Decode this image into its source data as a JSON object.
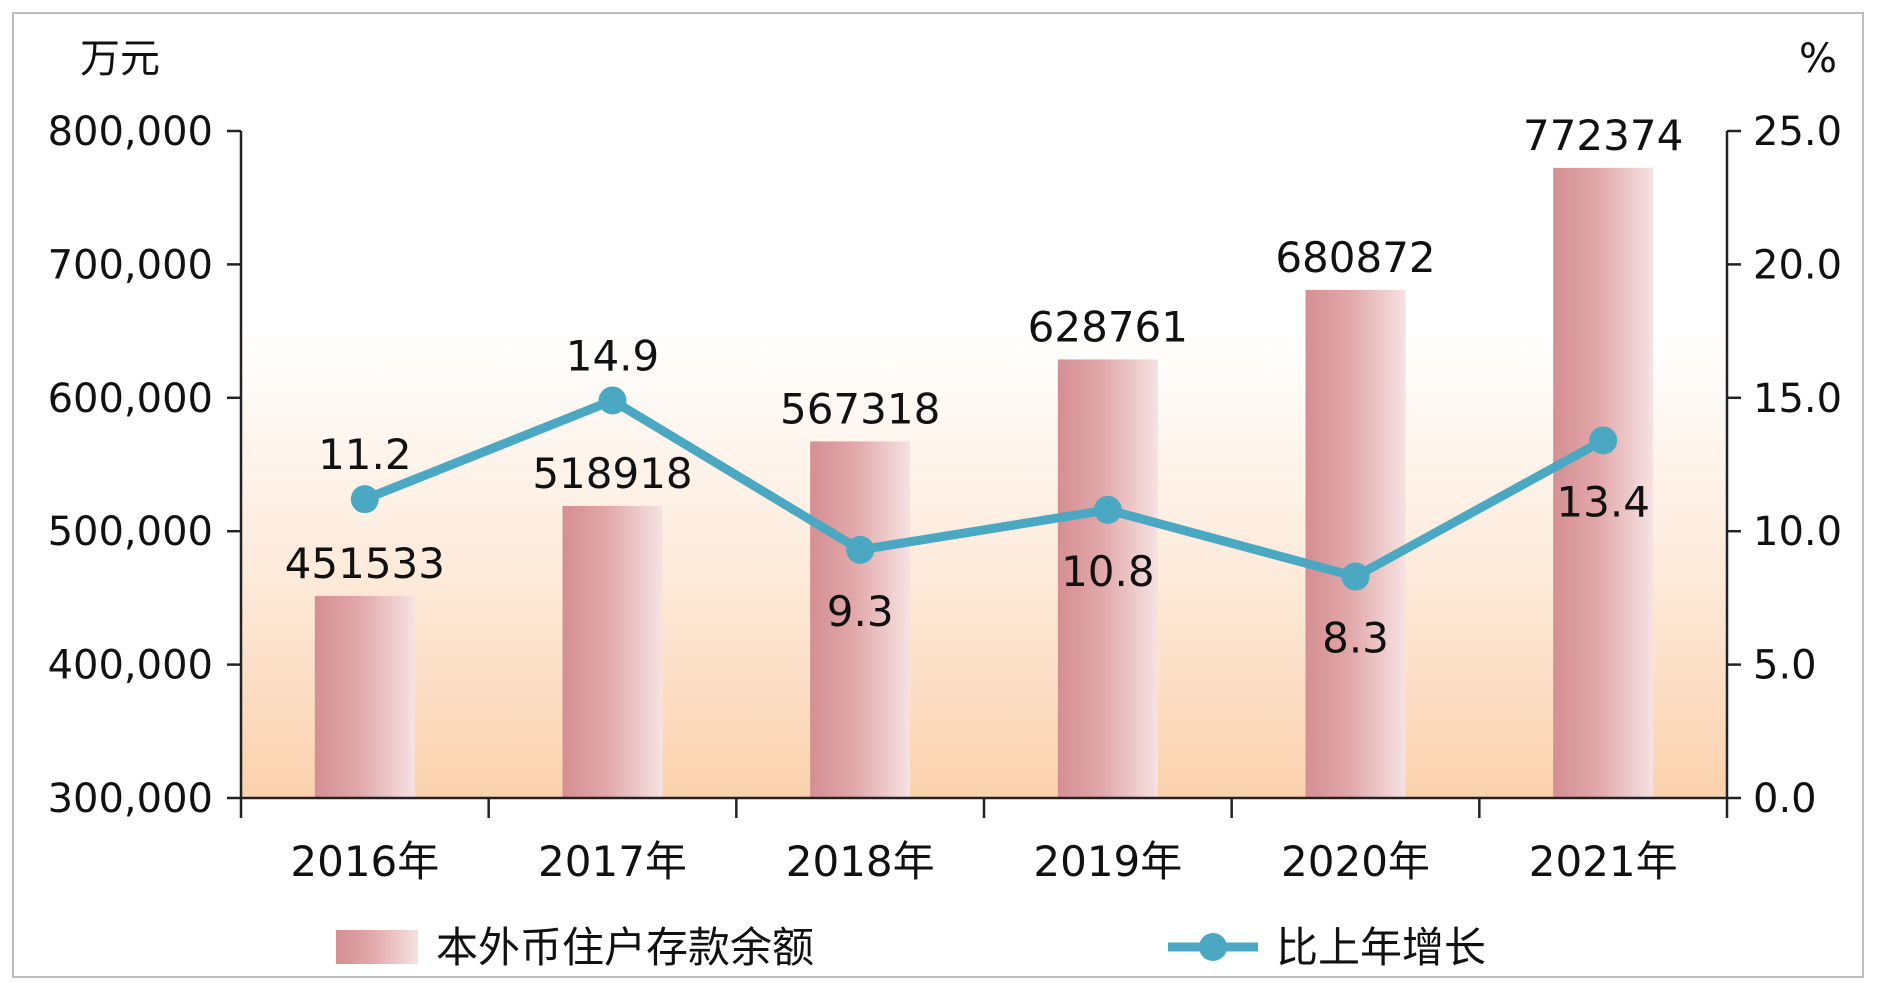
{
  "chart_data": {
    "type": "bar",
    "categories": [
      "2016年",
      "2017年",
      "2018年",
      "2019年",
      "2020年",
      "2021年"
    ],
    "series": [
      {
        "name": "本外币住户存款余额",
        "type": "bar",
        "axis": "left",
        "values": [
          451533,
          518918,
          567318,
          628761,
          680872,
          772374
        ],
        "labels": [
          "451533",
          "518918",
          "567318",
          "628761",
          "680872",
          "772374"
        ]
      },
      {
        "name": "比上年增长",
        "type": "line",
        "axis": "right",
        "values": [
          11.2,
          14.9,
          9.3,
          10.8,
          8.3,
          13.4
        ],
        "labels": [
          "11.2",
          "14.9",
          "9.3",
          "10.8",
          "8.3",
          "13.4"
        ]
      }
    ],
    "ylabel": "万元",
    "y2label": "%",
    "ylim": [
      300000,
      800000
    ],
    "y2lim": [
      0,
      25
    ],
    "yticks": [
      "300,000",
      "400,000",
      "500,000",
      "600,000",
      "700,000",
      "800,000"
    ],
    "y2ticks": [
      "0.0",
      "5.0",
      "10.0",
      "15.0",
      "20.0",
      "25.0"
    ],
    "legend_position": "bottom",
    "grid": false,
    "colors": {
      "bar": "#d99a9c",
      "bar_light": "#f3dcdc",
      "line": "#4aa8c3",
      "background_bottom": "#fbd1ad"
    }
  }
}
